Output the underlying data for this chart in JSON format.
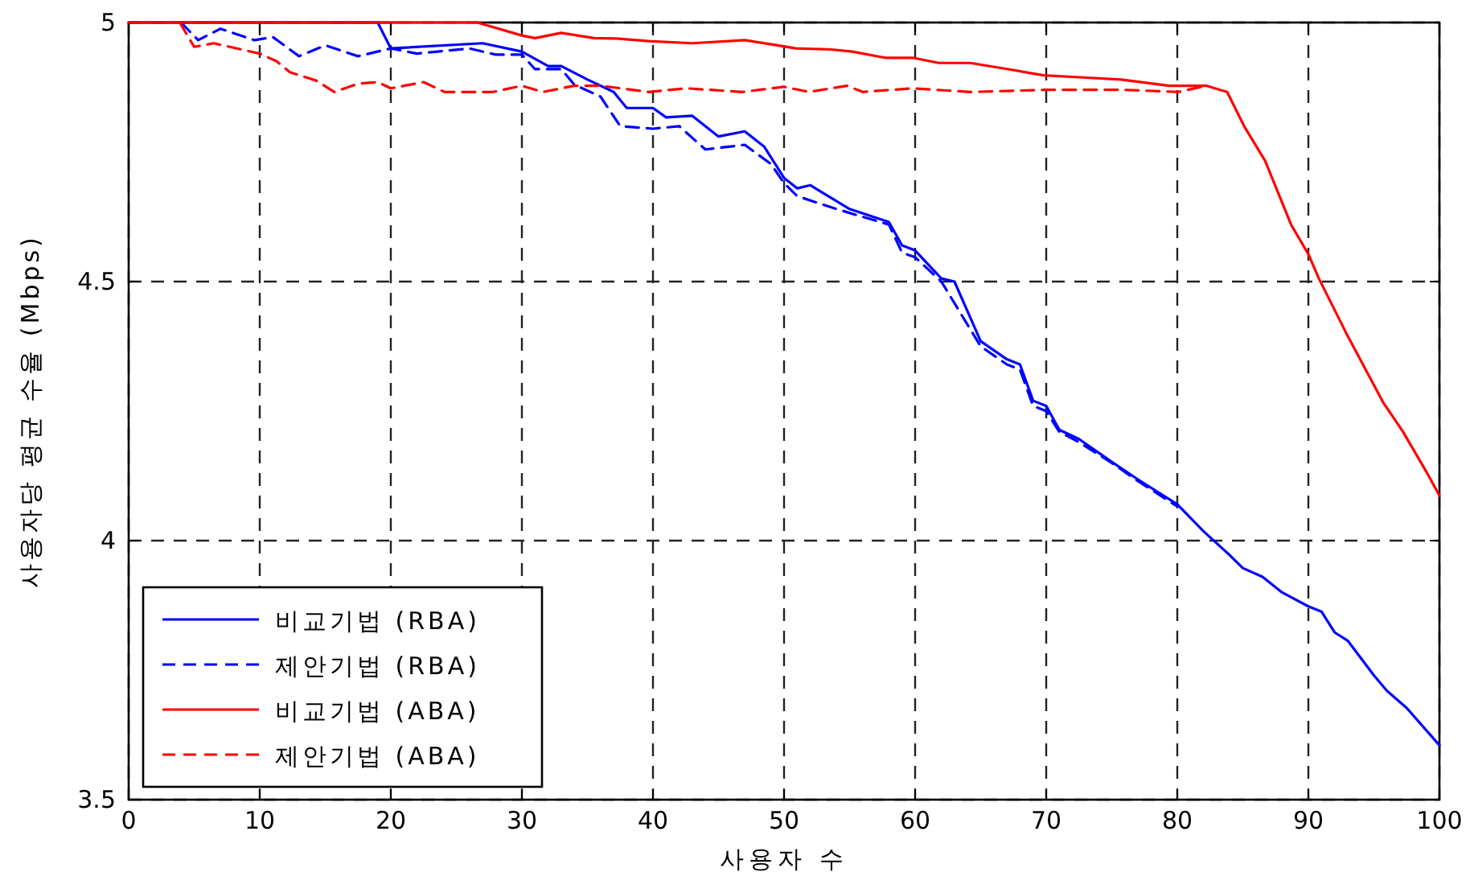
{
  "chart_data": {
    "type": "line",
    "xlabel": "사용자 수",
    "ylabel": "사용자당 평균 수율 (Mbps)",
    "xlim": [
      0,
      100
    ],
    "ylim": [
      3.5,
      5
    ],
    "xticks": [
      0,
      10,
      20,
      30,
      40,
      50,
      60,
      70,
      80,
      90,
      100
    ],
    "yticks": [
      3.5,
      4,
      4.5,
      5
    ],
    "grid": true,
    "legend": "bottom left",
    "series": [
      {
        "name": "비교기법 (RBA)",
        "color": "#0000ff",
        "line_style": "solid",
        "x": [
          0,
          19,
          20,
          27,
          30,
          32,
          33,
          35,
          37,
          38,
          40,
          41,
          43,
          45,
          47,
          48.5,
          50,
          51,
          52,
          55,
          58,
          59,
          60,
          62,
          63,
          65,
          67,
          68,
          69,
          70,
          71,
          72.5,
          75,
          77,
          80,
          82,
          84,
          85,
          86.5,
          88,
          90,
          91,
          92,
          93,
          95,
          96,
          97.5,
          100
        ],
        "values": [
          5,
          5,
          4.95,
          4.96,
          4.944,
          4.916,
          4.916,
          4.89,
          4.866,
          4.835,
          4.835,
          4.817,
          4.82,
          4.78,
          4.79,
          4.76,
          4.7,
          4.68,
          4.686,
          4.64,
          4.615,
          4.57,
          4.56,
          4.506,
          4.5,
          4.385,
          4.35,
          4.34,
          4.27,
          4.26,
          4.214,
          4.196,
          4.152,
          4.118,
          4.07,
          4.018,
          3.972,
          3.947,
          3.93,
          3.9,
          3.873,
          3.863,
          3.823,
          3.807,
          3.74,
          3.71,
          3.677,
          3.605
        ]
      },
      {
        "name": "제안기법 (RBA)",
        "color": "#0000ff",
        "line_style": "dashed",
        "x": [
          4,
          5.3,
          7,
          9.6,
          11,
          13,
          15,
          17.5,
          20,
          22,
          26,
          28,
          30,
          31,
          33,
          34,
          36,
          37.5,
          40,
          42,
          44,
          47,
          49,
          50,
          51,
          54,
          58,
          59,
          60,
          62,
          65,
          67,
          68,
          69,
          70,
          71,
          72.5,
          75,
          77,
          80
        ],
        "values": [
          5,
          4.966,
          4.988,
          4.966,
          4.972,
          4.935,
          4.956,
          4.935,
          4.95,
          4.94,
          4.95,
          4.938,
          4.938,
          4.91,
          4.91,
          4.88,
          4.857,
          4.8,
          4.795,
          4.8,
          4.755,
          4.764,
          4.727,
          4.69,
          4.665,
          4.64,
          4.61,
          4.556,
          4.547,
          4.5,
          4.375,
          4.34,
          4.33,
          4.26,
          4.25,
          4.21,
          4.19,
          4.15,
          4.115,
          4.066
        ]
      },
      {
        "name": "비교기법 (ABA)",
        "color": "#ff0000",
        "line_style": "solid",
        "x": [
          0,
          26.6,
          30,
          31,
          33,
          35.5,
          37.2,
          39.7,
          43,
          47,
          49.5,
          50.9,
          53.6,
          55.2,
          57.7,
          59.8,
          61.8,
          64.2,
          67.1,
          69.8,
          72.8,
          75.7,
          79.4,
          82.2,
          83.8,
          85.1,
          86.7,
          88.7,
          90,
          90.8,
          92.9,
          95.7,
          97.2,
          99,
          100
        ],
        "values": [
          5,
          5,
          4.975,
          4.97,
          4.98,
          4.97,
          4.969,
          4.964,
          4.96,
          4.966,
          4.956,
          4.95,
          4.948,
          4.944,
          4.932,
          4.932,
          4.922,
          4.922,
          4.91,
          4.898,
          4.894,
          4.89,
          4.878,
          4.878,
          4.866,
          4.8,
          4.733,
          4.609,
          4.553,
          4.506,
          4.4,
          4.267,
          4.211,
          4.133,
          4.087
        ]
      },
      {
        "name": "제안기법 (ABA)",
        "color": "#ff0000",
        "line_style": "dashed",
        "x": [
          3.9,
          5,
          6.5,
          10,
          11.3,
          12.3,
          14.3,
          15.7,
          17.5,
          19,
          20,
          22.5,
          24.1,
          27.8,
          30,
          31.6,
          34,
          36,
          39.7,
          42.6,
          46.8,
          50,
          51.9,
          54.8,
          56,
          59.8,
          64.2,
          69.8,
          76,
          80.1,
          82.2
        ],
        "values": [
          5,
          4.953,
          4.96,
          4.94,
          4.925,
          4.904,
          4.888,
          4.866,
          4.882,
          4.885,
          4.873,
          4.885,
          4.866,
          4.866,
          4.878,
          4.866,
          4.878,
          4.878,
          4.866,
          4.873,
          4.866,
          4.876,
          4.866,
          4.878,
          4.866,
          4.873,
          4.866,
          4.87,
          4.87,
          4.866,
          4.878
        ]
      }
    ]
  }
}
